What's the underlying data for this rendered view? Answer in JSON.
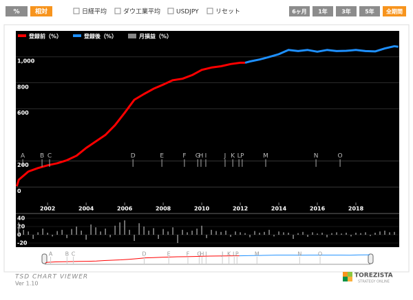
{
  "toolbar": {
    "modes": [
      "%",
      "相対"
    ],
    "overlays": [
      "日経平均",
      "ダウ工業平均",
      "USDJPY",
      "リセット"
    ],
    "periods": [
      "6ヶ月",
      "1年",
      "3年",
      "5年",
      "全期間"
    ]
  },
  "chart_data": [
    {
      "type": "line",
      "xlim": [
        2000.35,
        2020.25
      ],
      "xticks": [
        2002,
        2004,
        2006,
        2008,
        2010,
        2012,
        2014,
        2016,
        2018
      ],
      "ylim": [
        -120,
        1200
      ],
      "yticks": [
        0,
        200,
        600,
        800,
        {
          "value": 1000,
          "label": "1,000"
        }
      ],
      "grid": true,
      "series": [
        {
          "name": "登録前（%）",
          "color": "#ff0000",
          "x": [
            2000.4,
            2000.5,
            2001.0,
            2001.5,
            2002.0,
            2002.5,
            2003.0,
            2003.5,
            2004.0,
            2004.5,
            2005.0,
            2005.5,
            2006.0,
            2006.5,
            2007.0,
            2007.5,
            2008.0,
            2008.5,
            2009.0,
            2009.5,
            2010.0,
            2010.5,
            2011.0,
            2011.5,
            2012.0,
            2012.25
          ],
          "values": [
            5,
            55,
            118,
            145,
            166,
            182,
            205,
            240,
            300,
            350,
            400,
            475,
            570,
            670,
            714,
            755,
            787,
            821,
            832,
            860,
            900,
            918,
            928,
            945,
            955,
            955
          ]
        },
        {
          "name": "登録後（%）",
          "color": "#1e90ff",
          "x": [
            2012.25,
            2012.5,
            2013.0,
            2013.5,
            2014.0,
            2014.5,
            2015.0,
            2015.5,
            2016.0,
            2016.5,
            2017.0,
            2017.5,
            2018.0,
            2018.5,
            2019.0,
            2019.5,
            2020.0,
            2020.2
          ],
          "values": [
            955,
            965,
            980,
            1000,
            1021,
            1053,
            1045,
            1053,
            1040,
            1053,
            1045,
            1047,
            1053,
            1045,
            1042,
            1065,
            1082,
            1078
          ]
        }
      ],
      "annotations": [
        {
          "text": "A",
          "x": 2000.71
        },
        {
          "text": "B",
          "x": 2001.71
        },
        {
          "text": "C",
          "x": 2002.1
        },
        {
          "text": "D",
          "x": 2006.43
        },
        {
          "text": "E",
          "x": 2007.93
        },
        {
          "text": "F",
          "x": 2009.1
        },
        {
          "text": "G",
          "x": 2009.79
        },
        {
          "text": "H",
          "x": 2009.96
        },
        {
          "text": "I",
          "x": 2010.21
        },
        {
          "text": "J",
          "x": 2011.21
        },
        {
          "text": "K",
          "x": 2011.61
        },
        {
          "text": "L",
          "x": 2011.93
        },
        {
          "text": "P",
          "x": 2012.1
        },
        {
          "text": "M",
          "x": 2013.32
        },
        {
          "text": "N",
          "x": 2015.93
        },
        {
          "text": "O",
          "x": 2017.18
        }
      ]
    },
    {
      "type": "bar",
      "xlim": [
        2000.35,
        2020.25
      ],
      "ylim": [
        -30,
        50
      ],
      "yticks": [
        40,
        20,
        0,
        -20
      ],
      "series": [
        {
          "name": "月損益（%）",
          "color": "#888888",
          "x": [
            2000.5,
            2000.75,
            2001.0,
            2001.25,
            2001.5,
            2001.75,
            2002.0,
            2002.25,
            2002.5,
            2002.75,
            2003.0,
            2003.25,
            2003.5,
            2003.75,
            2004.0,
            2004.25,
            2004.5,
            2004.75,
            2005.0,
            2005.25,
            2005.5,
            2005.75,
            2006.0,
            2006.25,
            2006.5,
            2006.75,
            2007.0,
            2007.25,
            2007.5,
            2007.75,
            2008.0,
            2008.25,
            2008.5,
            2008.75,
            2009.0,
            2009.25,
            2009.5,
            2009.75,
            2010.0,
            2010.25,
            2010.5,
            2010.75,
            2011.0,
            2011.25,
            2011.5,
            2011.75,
            2012.0,
            2012.25,
            2012.5,
            2012.75,
            2013.0,
            2013.25,
            2013.5,
            2013.75,
            2014.0,
            2014.25,
            2014.5,
            2014.75,
            2015.0,
            2015.25,
            2015.5,
            2015.75,
            2016.0,
            2016.25,
            2016.5,
            2016.75,
            2017.0,
            2017.25,
            2017.5,
            2017.75,
            2018.0,
            2018.25,
            2018.5,
            2018.75,
            2019.0,
            2019.25,
            2019.5,
            2019.75,
            2020.0
          ],
          "values": [
            30,
            12,
            8,
            -10,
            6,
            15,
            5,
            -4,
            9,
            12,
            -8,
            14,
            20,
            10,
            -12,
            25,
            18,
            8,
            15,
            -6,
            22,
            30,
            35,
            12,
            -15,
            28,
            20,
            10,
            16,
            -10,
            14,
            8,
            18,
            -20,
            12,
            6,
            10,
            15,
            22,
            -8,
            12,
            9,
            7,
            10,
            -5,
            8,
            6,
            4,
            -6,
            9,
            5,
            7,
            12,
            -4,
            8,
            6,
            5,
            -10,
            4,
            7,
            -5,
            6,
            3,
            5,
            -6,
            4,
            6,
            3,
            5,
            -4,
            5,
            4,
            6,
            -3,
            5,
            8,
            10,
            6,
            7
          ]
        }
      ]
    }
  ],
  "footer": {
    "title": "TSD CHART VIEWER",
    "version": "Ver 1.10",
    "logo": "TOREZISTA",
    "logo_sub": "STRATEGY ONLINE"
  }
}
